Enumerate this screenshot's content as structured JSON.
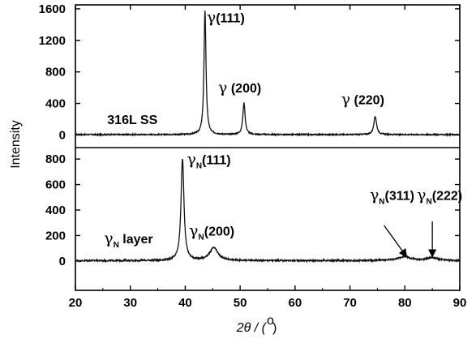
{
  "chart_data": {
    "type": "line",
    "grid": false,
    "xlabel": {
      "theta": "2θ / (",
      "deg": "o",
      "close": ")"
    },
    "ylabel": "Intensity",
    "xlim": [
      20,
      90
    ],
    "xticks": [
      "20",
      "30",
      "40",
      "50",
      "60",
      "70",
      "80",
      "90"
    ],
    "panels": [
      {
        "name": "316L SS",
        "ylim": [
          -160,
          1650
        ],
        "yticks": [
          "0",
          "400",
          "800",
          "1200",
          "1600"
        ],
        "baseline": 5,
        "peaks": [
          {
            "x": 43.6,
            "height": 1575,
            "width": 0.22
          },
          {
            "x": 50.7,
            "height": 400,
            "width": 0.25
          },
          {
            "x": 74.6,
            "height": 230,
            "width": 0.3
          }
        ],
        "annotations": [
          {
            "symbol": "γ",
            "sub": "",
            "label": "(111)",
            "x": 43.9,
            "y": 1430
          },
          {
            "symbol": "γ",
            "sub": "",
            "label": " (200)",
            "x": 46.0,
            "y": 540
          },
          {
            "symbol": "γ",
            "sub": "",
            "label": " (220)",
            "x": 68.4,
            "y": 390
          }
        ]
      },
      {
        "name": "γN layer",
        "ylim": [
          -230,
          890
        ],
        "yticks": [
          "0",
          "200",
          "400",
          "600",
          "800"
        ],
        "baseline": 3,
        "peaks": [
          {
            "x": 39.5,
            "height": 800,
            "width": 0.32
          },
          {
            "x": 45.2,
            "height": 100,
            "width": 0.9
          },
          {
            "x": 79.9,
            "height": 30,
            "width": 1.4
          },
          {
            "x": 85.0,
            "height": 22,
            "width": 1.2
          }
        ],
        "annotations": [
          {
            "symbol": "γ",
            "sub": "N",
            "label": "(111)",
            "x": 40.3,
            "y": 760
          },
          {
            "symbol": "γ",
            "sub": "N",
            "label": "(200)",
            "x": 40.7,
            "y": 200
          },
          {
            "symbol": "γ",
            "sub": "N",
            "label": "(311)",
            "x": 73.6,
            "y": 480
          },
          {
            "symbol": "γ",
            "sub": "N",
            "label": "(222)",
            "x": 82.2,
            "y": 480
          }
        ],
        "arrows": [
          {
            "from": [
              76.2,
              280
            ],
            "to": [
              80.3,
              35
            ]
          },
          {
            "from": [
              85.0,
              310
            ],
            "to": [
              85.0,
              35
            ]
          }
        ]
      }
    ],
    "panel_labels": [
      {
        "symbol": "",
        "sub": "",
        "label": "316L SS",
        "x": 25.8,
        "y": 140,
        "panel": 0
      },
      {
        "symbol": "γ",
        "sub": "N",
        "label": " layer",
        "x": 25.2,
        "y": 140,
        "panel": 1
      }
    ]
  }
}
